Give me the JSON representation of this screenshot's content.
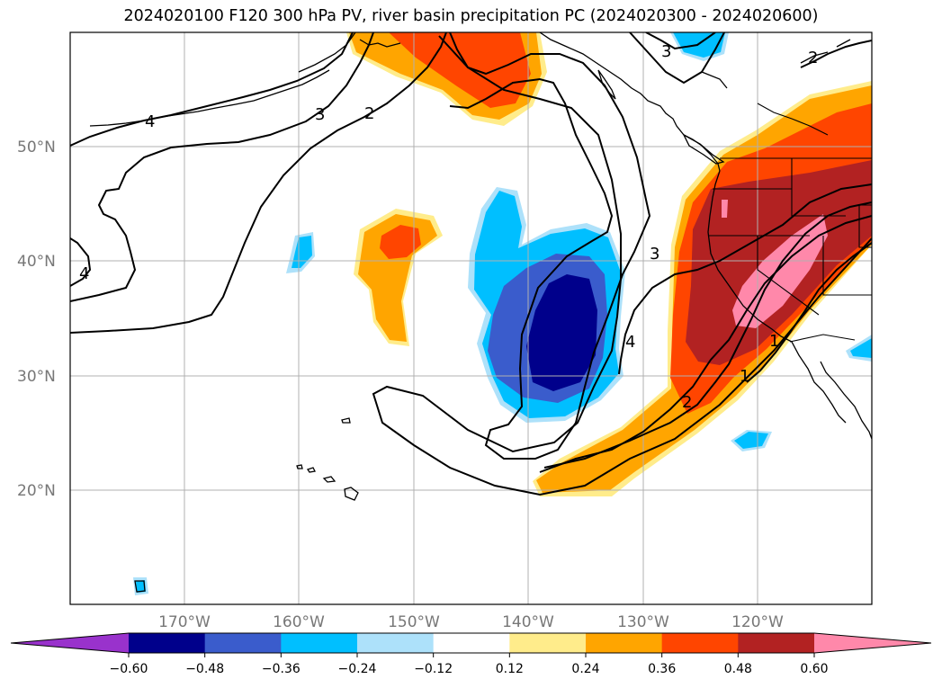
{
  "title": "2024020100 F120 300 hPa PV, river basin precipitation PC (2024020300 - 2024020600)",
  "map": {
    "projection": "PlateCarree",
    "lon_range": [
      -180,
      -110
    ],
    "lat_range": [
      10,
      60
    ],
    "gridlines": true,
    "lat_ticks": [
      {
        "value": 50,
        "label": "50°N"
      },
      {
        "value": 40,
        "label": "40°N"
      },
      {
        "value": 30,
        "label": "30°N"
      },
      {
        "value": 20,
        "label": "20°N"
      }
    ],
    "lon_ticks": [
      {
        "value": -170,
        "label": "170°W"
      },
      {
        "value": -160,
        "label": "160°W"
      },
      {
        "value": -150,
        "label": "150°W"
      },
      {
        "value": -140,
        "label": "140°W"
      },
      {
        "value": -130,
        "label": "130°W"
      },
      {
        "value": -120,
        "label": "120°W"
      }
    ],
    "pv_contour_labels": [
      {
        "text": "4",
        "lon": -173,
        "lat": 52.3
      },
      {
        "text": "3",
        "lon": -158,
        "lat": 53.3
      },
      {
        "text": "2",
        "lon": -155,
        "lat": 53.5
      },
      {
        "text": "4",
        "lon": -179,
        "lat": 39
      },
      {
        "text": "3",
        "lon": -131,
        "lat": 58.8
      },
      {
        "text": "2",
        "lon": -114.5,
        "lat": 57.5
      },
      {
        "text": "3",
        "lon": -129,
        "lat": 41
      },
      {
        "text": "4",
        "lon": -131,
        "lat": 33
      },
      {
        "text": "2",
        "lon": -127.5,
        "lat": 28
      },
      {
        "text": "1",
        "lon": -122.5,
        "lat": 30.5
      },
      {
        "text": "1",
        "lon": -117.8,
        "lat": 33.5
      }
    ]
  },
  "colorbar": {
    "extend": "both",
    "levels": [
      -0.6,
      -0.48,
      -0.36,
      -0.24,
      -0.12,
      0.12,
      0.24,
      0.36,
      0.48,
      0.6
    ],
    "tick_labels": [
      "−0.60",
      "−0.48",
      "−0.36",
      "−0.24",
      "−0.12",
      "0.12",
      "0.24",
      "0.36",
      "0.48",
      "0.60"
    ],
    "colors": [
      "#9932CC",
      "#00008B",
      "#3A5CCC",
      "#00BFFF",
      "#ADE1FA",
      "#FFFFFF",
      "#FFEC8B",
      "#FFA500",
      "#FF4500",
      "#B22222",
      "#FF88AA"
    ]
  }
}
